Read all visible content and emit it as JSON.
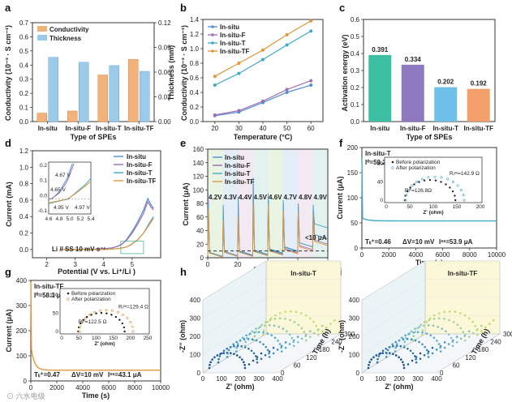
{
  "watermark": "⊙ 六水电级",
  "colors": {
    "orange": "#E8963C",
    "blue": "#5BA3D9",
    "insitu": "#4F8FCF",
    "F": "#9E6FB3",
    "T": "#3FA9C9",
    "TF": "#E0963B",
    "teal": "#3DBFA4",
    "purple": "#8E79C0",
    "lightblue": "#6FC0E8",
    "salmon": "#F4A06A"
  },
  "chart_data": [
    {
      "panel": "a",
      "type": "bar",
      "categories": [
        "In-situ",
        "In-situ-F",
        "In-situ-T",
        "In-situ-TF"
      ],
      "series": [
        {
          "name": "Conductivity",
          "values": [
            0.06,
            0.075,
            0.33,
            0.44
          ]
        },
        {
          "name": "Thickness",
          "values": [
            0.078,
            0.072,
            0.068,
            0.061
          ]
        }
      ],
      "xlabel": "Type of SPEs",
      "ylabel": "Conductivity (10⁻³ · S cm⁻¹)",
      "y2label": "Thickness (mm)",
      "ylim": [
        0,
        0.7
      ],
      "y2lim": [
        0,
        0.12
      ],
      "yticks": [
        "0.0",
        "0.1",
        "0.2",
        "0.3",
        "0.4",
        "0.5",
        "0.6",
        "0.7"
      ],
      "y2ticks": [
        "0.00",
        "0.03",
        "0.06",
        "0.09",
        "0.12"
      ],
      "legend": "top-left"
    },
    {
      "panel": "b",
      "type": "line",
      "x": [
        20,
        30,
        40,
        50,
        60
      ],
      "series": [
        {
          "name": "In-situ",
          "values": [
            0.08,
            0.13,
            0.26,
            0.4,
            0.5
          ]
        },
        {
          "name": "In-situ-F",
          "values": [
            0.09,
            0.15,
            0.28,
            0.44,
            0.56
          ]
        },
        {
          "name": "In-situ-T",
          "values": [
            0.5,
            0.66,
            0.85,
            1.05,
            1.24
          ]
        },
        {
          "name": "In-situ-TF",
          "values": [
            0.62,
            0.8,
            0.98,
            1.19,
            1.38
          ]
        }
      ],
      "xlabel": "Temperature (°C)",
      "ylabel": "Conductivity (10⁻³ · S cm⁻¹)",
      "xlim": [
        15,
        65
      ],
      "ylim": [
        0,
        1.4
      ],
      "yticks": [
        "0.0",
        "0.2",
        "0.4",
        "0.6",
        "0.8",
        "1.0",
        "1.2",
        "1.4"
      ],
      "xticks": [
        "20",
        "30",
        "40",
        "50",
        "60"
      ],
      "legend": "top-left"
    },
    {
      "panel": "c",
      "type": "bar",
      "categories": [
        "In-situ",
        "In-situ-F",
        "In-situ-T",
        "In-situ-TF"
      ],
      "values": [
        0.391,
        0.334,
        0.202,
        0.192
      ],
      "labels": [
        "0.391",
        "0.334",
        "0.202",
        "0.192"
      ],
      "xlabel": "Type of SPEs",
      "ylabel": "Activation energy (eV)",
      "ylim": [
        0,
        0.6
      ],
      "yticks": [
        "0.0",
        "0.1",
        "0.2",
        "0.3",
        "0.4",
        "0.5",
        "0.6"
      ]
    },
    {
      "panel": "d",
      "type": "line",
      "series": [
        {
          "name": "In-situ",
          "x": [
            2.5,
            3,
            3.5,
            4,
            4.3,
            4.5,
            4.67,
            4.8,
            5,
            5.2,
            5.4,
            5.55,
            5.65,
            5.75
          ],
          "values": [
            0,
            0,
            0,
            0.01,
            0.02,
            0.04,
            0.07,
            0.12,
            0.22,
            0.34,
            0.48,
            0.62,
            0.55,
            0.5
          ]
        },
        {
          "name": "In-situ-F",
          "x": [
            2.5,
            3,
            3.5,
            4,
            4.3,
            4.5,
            4.65,
            4.8,
            5,
            5.2,
            5.4,
            5.55,
            5.65,
            5.75
          ],
          "values": [
            0,
            0,
            0,
            0.01,
            0.02,
            0.04,
            0.07,
            0.11,
            0.2,
            0.31,
            0.44,
            0.58,
            0.52,
            0.48
          ]
        },
        {
          "name": "In-situ-T",
          "x": [
            2.5,
            3,
            3.5,
            4,
            4.5,
            4.8,
            4.97,
            5.2,
            5.4,
            5.6,
            5.75
          ],
          "values": [
            0,
            0,
            0,
            0,
            0.01,
            0.03,
            0.06,
            0.12,
            0.2,
            0.32,
            0.4
          ]
        },
        {
          "name": "In-situ-TF",
          "x": [
            2.5,
            3,
            3.5,
            4,
            4.5,
            4.8,
            4.95,
            5.2,
            5.4,
            5.6,
            5.75
          ],
          "values": [
            0,
            0,
            0,
            0,
            0.01,
            0.03,
            0.06,
            0.12,
            0.2,
            0.3,
            0.38
          ]
        }
      ],
      "xlabel": "Potential (V vs. Li⁺/Li )",
      "ylabel": "Current (mA)",
      "xlim": [
        1.5,
        6.0
      ],
      "ylim": [
        -0.1,
        1.2
      ],
      "xticks": [
        "2",
        "3",
        "4",
        "5"
      ],
      "yticks": [
        "0.0",
        "0.2",
        "0.4",
        "0.6",
        "0.8",
        "1.0",
        "1.2"
      ],
      "annotation": "Li // SS  10 mV s⁻¹",
      "inset": {
        "xticks": [
          "4.6",
          "4.8",
          "5.0",
          "5.2",
          "5.4"
        ],
        "yticks": [
          "-0.1",
          "0.0",
          "0.1",
          "0.2"
        ],
        "labels": [
          "4.67 V",
          "4.65 V",
          "4.95 V",
          "4.97 V"
        ]
      },
      "legend": "top-right"
    },
    {
      "panel": "e",
      "type": "line",
      "series": [
        {
          "name": "In-situ"
        },
        {
          "name": "In-situ-F"
        },
        {
          "name": "In-situ-T"
        },
        {
          "name": "In-situ-TF"
        }
      ],
      "voltage_steps": [
        "4.2V",
        "4.3V",
        "4.4V",
        "4.5V",
        "4.6V",
        "4.7V",
        "4.8V",
        "4.9V"
      ],
      "xlabel": "Time (h)",
      "ylabel": "Current (μA)",
      "xlim": [
        0,
        80
      ],
      "ylim": [
        0,
        160
      ],
      "xticks": [
        "0",
        "20",
        "40",
        "60",
        "80"
      ],
      "yticks": [
        "0",
        "20",
        "40",
        "60",
        "80",
        "100",
        "120",
        "140",
        "160"
      ],
      "threshold_label": "<10 μA",
      "legend": "top-left"
    },
    {
      "panel": "f",
      "type": "line",
      "title": "In-situ-T",
      "xlabel": "Time (s)",
      "ylabel": "Current (μA)",
      "xlim": [
        0,
        10000
      ],
      "ylim": [
        0,
        200
      ],
      "xticks": [
        "0",
        "2000",
        "4000",
        "6000",
        "8000",
        "10000"
      ],
      "yticks": [
        "0",
        "50",
        "100",
        "150",
        "200"
      ],
      "I0": "I⁰=59.2 μA",
      "Iss": "Iˢˢ=53.9 μA",
      "tLi": "Tₗᵢ⁺=0.46",
      "dV": "ΔV=10 mV",
      "inset": {
        "legend": [
          "Before polarization",
          "After polarization"
        ],
        "xlabel": "Z' (ohm)",
        "ylabel": "-Z'' (ohm)",
        "R0": "Rᵢ⁰=126.8Ω",
        "Rss": "Rᵢˢˢ=142.9 Ω",
        "xticks": [
          "0",
          "50",
          "100",
          "150",
          "200"
        ],
        "yticks": [
          "0",
          "40",
          "80"
        ]
      }
    },
    {
      "panel": "g",
      "type": "line",
      "title": "In-situ-TF",
      "xlabel": "Time (s)",
      "ylabel": "Current (μA)",
      "xlim": [
        0,
        10000
      ],
      "ylim": [
        0,
        400
      ],
      "xticks": [
        "0",
        "2000",
        "4000",
        "6000",
        "8000",
        "10000"
      ],
      "yticks": [
        "0",
        "100",
        "200",
        "300",
        "400"
      ],
      "I0": "I⁰=58.1 μA",
      "Iss": "Iˢˢ=43.1 μA",
      "tLi": "Tₗᵢ⁺=0.47",
      "dV": "ΔV=10 mV",
      "inset": {
        "legend": [
          "Before polarization",
          "After polarization"
        ],
        "xlabel": "Z' (ohm)",
        "ylabel": "-Z'' (ohm)",
        "R0": "Rᵢ⁰=122.5 Ω",
        "Rss": "Rᵢˢˢ=129.4 Ω",
        "xticks": [
          "0",
          "50",
          "100",
          "150",
          "200",
          "250"
        ],
        "yticks": [
          "0",
          "50",
          "100"
        ]
      }
    },
    {
      "panel": "h",
      "type": "scatter",
      "title": "In-situ-T",
      "xlabel": "Z' (ohm)",
      "ylabel": "-Z'' (ohm)",
      "zlabel": "Time (h)",
      "xticks": [
        "0",
        "100",
        "200",
        "300",
        "400"
      ],
      "yticks": [
        "0",
        "100",
        "200",
        "300",
        "400"
      ],
      "zticks": [
        "0",
        "60",
        "120",
        "180",
        "240",
        "300"
      ]
    },
    {
      "panel": "i",
      "type": "scatter",
      "title": "In-situ-TF",
      "xlabel": "Z' (ohm)",
      "ylabel": "-Z'' (ohm)",
      "zlabel": "Time (h)",
      "xticks": [
        "0",
        "100",
        "200",
        "300",
        "400"
      ],
      "yticks": [
        "0",
        "100",
        "200",
        "300",
        "400"
      ],
      "zticks": [
        "0",
        "60",
        "120",
        "180",
        "240",
        "300"
      ]
    }
  ]
}
